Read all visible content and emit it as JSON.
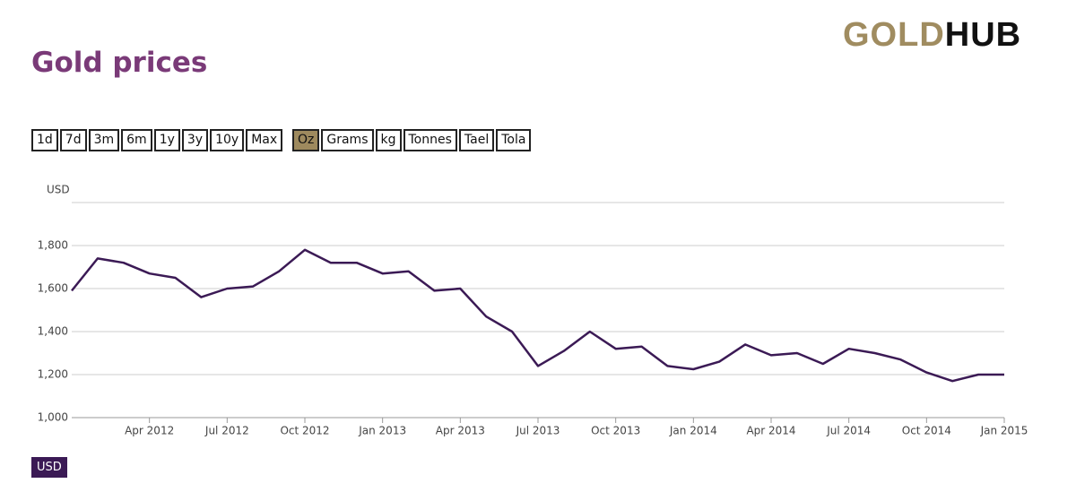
{
  "logo": {
    "part1": "GOLD",
    "part2": "HUB"
  },
  "title": "Gold prices",
  "range_buttons": [
    "1d",
    "7d",
    "3m",
    "6m",
    "1y",
    "3y",
    "10y",
    "Max"
  ],
  "unit_buttons": [
    "Oz",
    "Grams",
    "kg",
    "Tonnes",
    "Tael",
    "Tola"
  ],
  "active_unit": 0,
  "currency_badge": "USD",
  "chart_data": {
    "type": "line",
    "y_label": "USD",
    "color": "#3b1a55",
    "grid": true,
    "x": [
      "2012-01",
      "2012-02",
      "2012-03",
      "2012-04",
      "2012-05",
      "2012-06",
      "2012-07",
      "2012-08",
      "2012-09",
      "2012-10",
      "2012-11",
      "2012-12",
      "2013-01",
      "2013-02",
      "2013-03",
      "2013-04",
      "2013-05",
      "2013-06",
      "2013-07",
      "2013-08",
      "2013-09",
      "2013-10",
      "2013-11",
      "2013-12",
      "2014-01",
      "2014-02",
      "2014-03",
      "2014-04",
      "2014-05",
      "2014-06",
      "2014-07",
      "2014-08",
      "2014-09",
      "2014-10",
      "2014-11",
      "2014-12",
      "2015-01"
    ],
    "values": [
      1590,
      1740,
      1720,
      1670,
      1650,
      1560,
      1600,
      1610,
      1680,
      1780,
      1720,
      1720,
      1670,
      1680,
      1590,
      1600,
      1470,
      1400,
      1240,
      1310,
      1400,
      1320,
      1330,
      1240,
      1225,
      1260,
      1340,
      1290,
      1300,
      1250,
      1320,
      1300,
      1270,
      1210,
      1170,
      1200,
      1200
    ],
    "xlim": [
      "2012-01",
      "2015-01"
    ],
    "xticks": [
      {
        "value": "2012-04",
        "label": "Apr 2012"
      },
      {
        "value": "2012-07",
        "label": "Jul 2012"
      },
      {
        "value": "2012-10",
        "label": "Oct 2012"
      },
      {
        "value": "2013-01",
        "label": "Jan 2013"
      },
      {
        "value": "2013-04",
        "label": "Apr 2013"
      },
      {
        "value": "2013-07",
        "label": "Jul 2013"
      },
      {
        "value": "2013-10",
        "label": "Oct 2013"
      },
      {
        "value": "2014-01",
        "label": "Jan 2014"
      },
      {
        "value": "2014-04",
        "label": "Apr 2014"
      },
      {
        "value": "2014-07",
        "label": "Jul 2014"
      },
      {
        "value": "2014-10",
        "label": "Oct 2014"
      },
      {
        "value": "2015-01",
        "label": "Jan 2015"
      }
    ],
    "ylim": [
      1000,
      2000
    ],
    "yticks": [
      {
        "value": 1000,
        "label": "1,000"
      },
      {
        "value": 1200,
        "label": "1,200"
      },
      {
        "value": 1400,
        "label": "1,400"
      },
      {
        "value": 1600,
        "label": "1,600"
      },
      {
        "value": 1800,
        "label": "1,800"
      }
    ]
  }
}
